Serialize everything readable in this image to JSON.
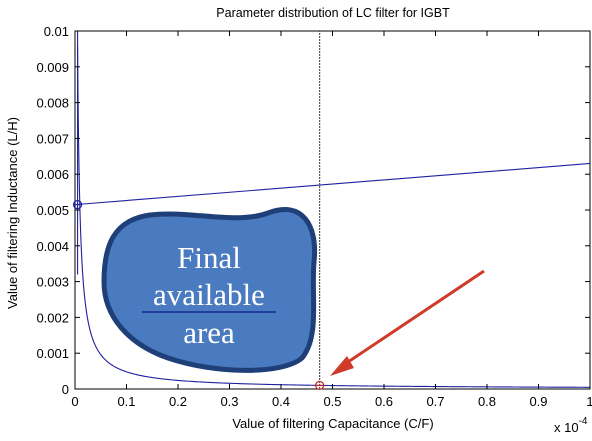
{
  "chart_data": {
    "type": "line",
    "title": "Parameter distribution of LC filter for IGBT",
    "xlabel": "Value of filtering Capacitance (C/F)",
    "ylabel": "Value of filtering Inductance (L/H)",
    "x_multiplier": "x 10",
    "x_multiplier_exponent": "-4",
    "xlim": [
      0,
      1
    ],
    "ylim": [
      0,
      0.01
    ],
    "x_ticks": [
      "0",
      "0.1",
      "0.2",
      "0.3",
      "0.4",
      "0.5",
      "0.6",
      "0.7",
      "0.8",
      "0.9",
      "1"
    ],
    "y_ticks": [
      "0",
      "0.001",
      "0.002",
      "0.003",
      "0.004",
      "0.005",
      "0.006",
      "0.007",
      "0.008",
      "0.009",
      "0.01"
    ],
    "grid": false,
    "series": [
      {
        "kind": "hyperbola",
        "color": "#2020a0",
        "x": [
          0.005,
          0.008,
          0.012,
          0.02,
          0.03,
          0.05,
          0.08,
          0.12,
          0.2,
          0.3,
          0.4,
          0.5,
          0.6,
          0.7,
          0.8,
          0.9,
          1.0
        ],
        "y": [
          0.01,
          0.006,
          0.004,
          0.0024,
          0.0016,
          0.00096,
          0.0006,
          0.0004,
          0.00024,
          0.00016,
          0.00012,
          9.6e-05,
          8e-05,
          6.9e-05,
          6e-05,
          5.3e-05,
          4.8e-05
        ]
      },
      {
        "kind": "upper-bound-line",
        "color": "#2020a0",
        "x": [
          0.0,
          1.0
        ],
        "y": [
          0.00515,
          0.0063
        ]
      },
      {
        "kind": "vertical-bound",
        "color": "#555555",
        "x": [
          0.475,
          0.475
        ],
        "y": [
          0.0,
          0.01
        ]
      }
    ],
    "markers": [
      {
        "x": 0.005,
        "y": 0.00515,
        "color": "#2020a0",
        "shape": "circle"
      },
      {
        "x": 0.475,
        "y": 0.0001,
        "color": "#cc2020",
        "shape": "circle"
      }
    ],
    "annotations": {
      "region_label_lines": [
        "Final",
        "available",
        "area"
      ],
      "region_color": "#4a7abf",
      "region_border": "#1f3f78",
      "arrow_color": "#d03a2a"
    }
  }
}
